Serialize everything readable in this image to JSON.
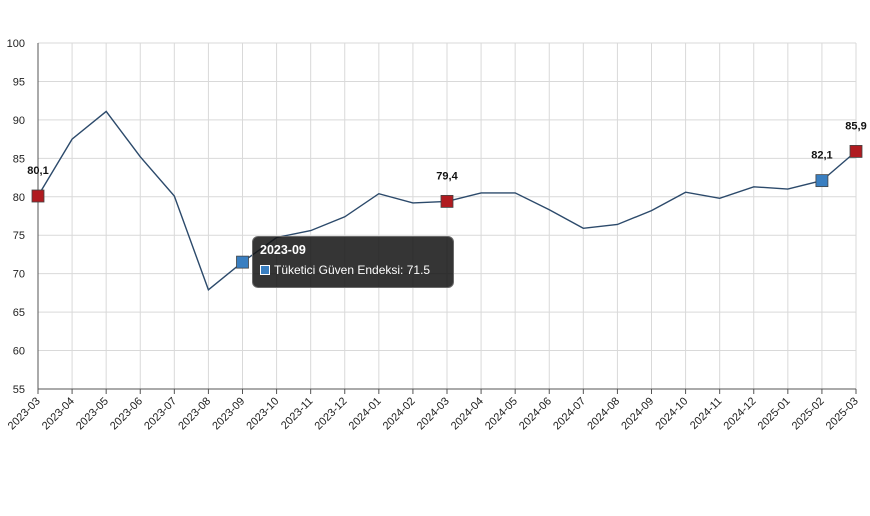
{
  "chart_data": {
    "type": "line",
    "categories": [
      "2023-03",
      "2023-04",
      "2023-05",
      "2023-06",
      "2023-07",
      "2023-08",
      "2023-09",
      "2023-10",
      "2023-11",
      "2023-12",
      "2024-01",
      "2024-02",
      "2024-03",
      "2024-04",
      "2024-05",
      "2024-06",
      "2024-07",
      "2024-08",
      "2024-09",
      "2024-10",
      "2024-11",
      "2024-12",
      "2025-01",
      "2025-02",
      "2025-03"
    ],
    "series": [
      {
        "name": "Tüketici Güven Endeksi",
        "values": [
          80.1,
          87.5,
          91.1,
          85.2,
          80.1,
          67.9,
          71.5,
          74.7,
          75.6,
          77.4,
          80.4,
          79.2,
          79.4,
          80.5,
          80.5,
          78.3,
          75.9,
          76.4,
          78.2,
          80.6,
          79.8,
          81.3,
          81.0,
          82.1,
          85.9
        ],
        "color": "#2c4a6b"
      }
    ],
    "ylim": [
      55,
      100
    ],
    "yticks": [
      "100",
      "95",
      "90",
      "85",
      "80",
      "75",
      "70",
      "65",
      "60",
      "55"
    ],
    "ytick_values": [
      100,
      95,
      90,
      85,
      80,
      75,
      70,
      65,
      60,
      55
    ],
    "grid": true,
    "markers": [
      {
        "category": "2023-03",
        "value": 80.1,
        "label": "80,1",
        "color": "#b01b20"
      },
      {
        "category": "2023-09",
        "value": 71.5,
        "label": "",
        "color": "#3a7fc1"
      },
      {
        "category": "2024-03",
        "value": 79.4,
        "label": "79,4",
        "color": "#b01b20"
      },
      {
        "category": "2025-02",
        "value": 82.1,
        "label": "82,1",
        "color": "#3a7fc1"
      },
      {
        "category": "2025-03",
        "value": 85.9,
        "label": "85,9",
        "color": "#b01b20"
      }
    ],
    "tooltip": {
      "title": "2023-09",
      "text": "Tüketici Güven Endeksi: 71.5",
      "swatch_color": "#3a7fc1"
    }
  }
}
